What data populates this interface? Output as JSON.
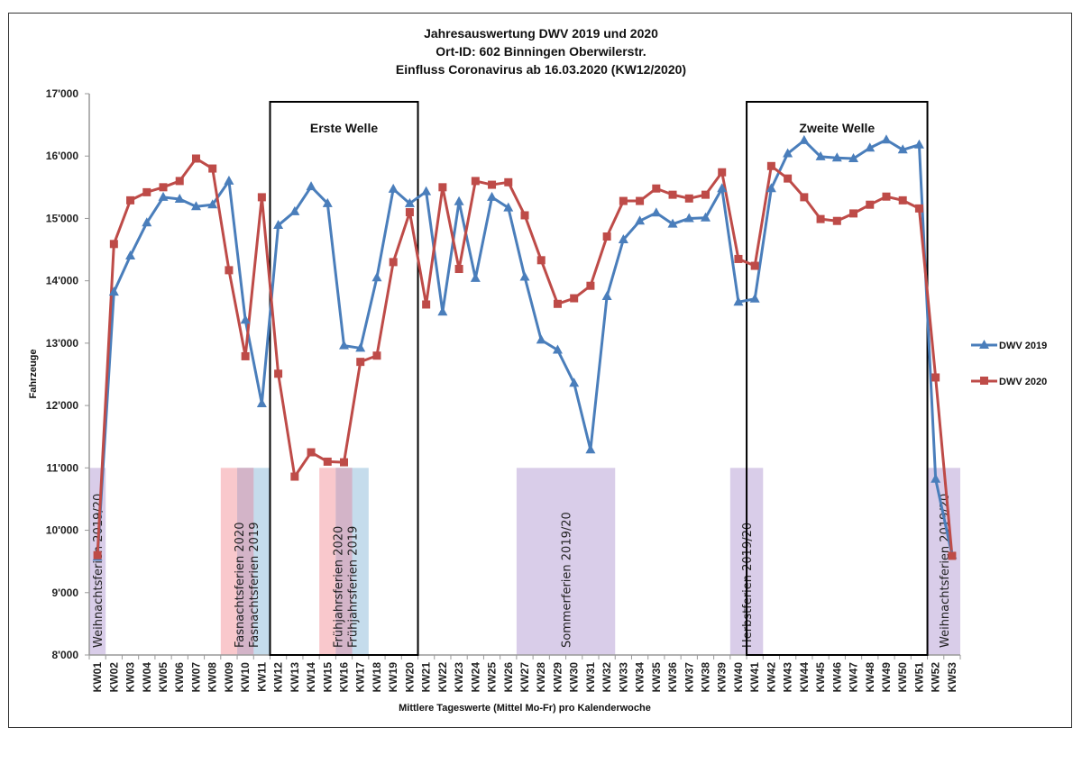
{
  "chart_data": {
    "type": "line",
    "title": [
      "Jahresauswertung DWV 2019 und 2020",
      "Ort-ID: 602 Binningen Oberwilerstr.",
      "Einfluss Coronavirus ab 16.03.2020 (KW12/2020)"
    ],
    "xlabel": "Mittlere Tageswerte (Mittel Mo-Fr) pro Kalenderwoche",
    "ylabel": "Fahrzeuge",
    "ylim": [
      8000,
      17000
    ],
    "yticks": [
      8000,
      9000,
      10000,
      11000,
      12000,
      13000,
      14000,
      15000,
      16000,
      17000
    ],
    "ytick_labels": [
      "8'000",
      "9'000",
      "10'000",
      "11'000",
      "12'000",
      "13'000",
      "14'000",
      "15'000",
      "16'000",
      "17'000"
    ],
    "grid": false,
    "legend_position": "right",
    "categories": [
      "KW01",
      "KW02",
      "KW03",
      "KW04",
      "KW05",
      "KW06",
      "KW07",
      "KW08",
      "KW09",
      "KW10",
      "KW11",
      "KW12",
      "KW13",
      "KW14",
      "KW15",
      "KW16",
      "KW17",
      "KW18",
      "KW19",
      "KW20",
      "KW21",
      "KW22",
      "KW23",
      "KW24",
      "KW25",
      "KW26",
      "KW27",
      "KW28",
      "KW29",
      "KW30",
      "KW31",
      "KW32",
      "KW33",
      "KW34",
      "KW35",
      "KW36",
      "KW37",
      "KW38",
      "KW39",
      "KW40",
      "KW41",
      "KW42",
      "KW43",
      "KW44",
      "KW45",
      "KW46",
      "KW47",
      "KW48",
      "KW49",
      "KW50",
      "KW51",
      "KW52",
      "KW53"
    ],
    "series": [
      {
        "name": "DWV 2019",
        "color": "#4a7ebb",
        "marker": "triangle",
        "values": [
          9570,
          13820,
          14400,
          14930,
          15340,
          15310,
          15190,
          15220,
          15600,
          13370,
          12030,
          14890,
          15110,
          15510,
          15240,
          12960,
          12920,
          14050,
          15470,
          15240,
          15430,
          13500,
          15270,
          14040,
          15340,
          15170,
          14060,
          13050,
          12890,
          12360,
          11290,
          13750,
          14660,
          14960,
          15090,
          14910,
          15000,
          15010,
          15480,
          13660,
          13710,
          15480,
          16040,
          16250,
          15990,
          15970,
          15960,
          16130,
          16260,
          16100,
          16180,
          10820,
          9600
        ]
      },
      {
        "name": "DWV 2020",
        "color": "#be4b48",
        "marker": "square",
        "values": [
          9600,
          14590,
          15290,
          15420,
          15500,
          15600,
          15960,
          15800,
          14170,
          12790,
          15340,
          12510,
          10860,
          11250,
          11100,
          11090,
          12700,
          12800,
          14300,
          15100,
          13620,
          15500,
          14190,
          15600,
          15540,
          15580,
          15050,
          14330,
          13630,
          13720,
          13920,
          14710,
          15280,
          15280,
          15480,
          15380,
          15320,
          15380,
          15740,
          14350,
          14240,
          15840,
          15640,
          15340,
          14990,
          14960,
          15080,
          15220,
          15350,
          15290,
          15160,
          12450,
          9590
        ]
      }
    ],
    "holiday_bands": [
      {
        "label": "Weihnachtsferien 2019/20",
        "from": "KW01",
        "to": "KW01",
        "color": "#d9cde9"
      },
      {
        "label": "Fasnachtsferien 2020",
        "from": "KW09",
        "to": "KW10",
        "color": "#f9c8cc"
      },
      {
        "label": "Fasnachtsferien 2019",
        "from": "KW10",
        "to": "KW11",
        "color": "#c5dcec"
      },
      {
        "label": "Frühjahrsferien 2020",
        "from": "KW15",
        "to": "KW16",
        "color": "#f9c8cc"
      },
      {
        "label": "Frühjahrsferien 2019",
        "from": "KW16",
        "to": "KW17",
        "color": "#c5dcec"
      },
      {
        "label": "Sommerferien 2019/20",
        "from": "KW27",
        "to": "KW32",
        "color": "#d9cde9"
      },
      {
        "label": "Herbstferien 2019/20",
        "from": "KW40",
        "to": "KW41",
        "color": "#d9cde9"
      },
      {
        "label": "Weihnachtsferien 2019/20",
        "from": "KW52",
        "to": "KW53",
        "color": "#d9cde9"
      }
    ],
    "band_top_value": 11000,
    "overlap_color": "#d3b4c8",
    "annotations": [
      {
        "label": "Erste Welle",
        "from": "KW12",
        "to": "KW20"
      },
      {
        "label": "Zweite Welle",
        "from": "KW41",
        "to": "KW51"
      }
    ]
  }
}
